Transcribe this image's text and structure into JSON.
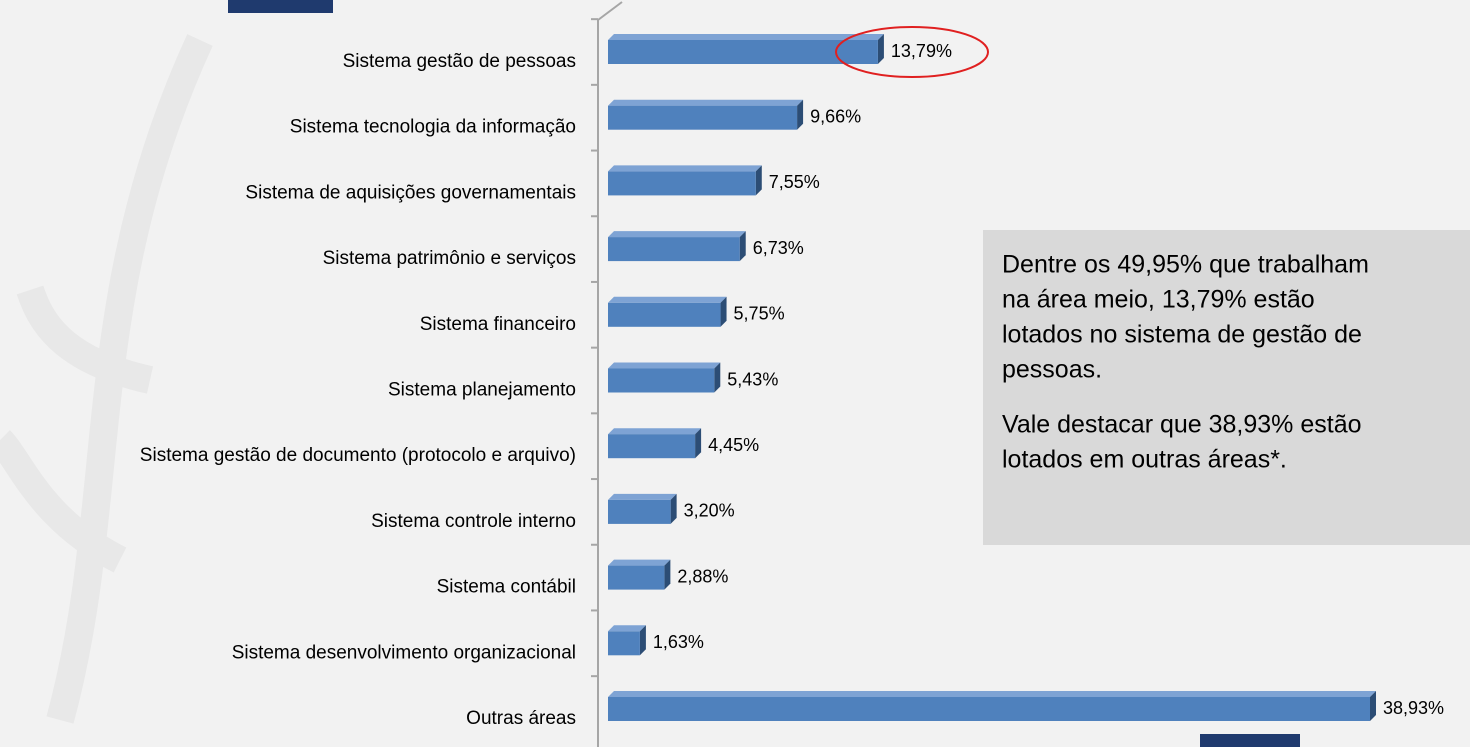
{
  "chart_data": {
    "type": "bar",
    "orientation": "horizontal",
    "categories": [
      "Sistema gestão de pessoas",
      "Sistema tecnologia da informação",
      "Sistema de aquisições governamentais",
      "Sistema patrimônio e serviços",
      "Sistema financeiro",
      "Sistema planejamento",
      "Sistema gestão de documento (protocolo e arquivo)",
      "Sistema controle interno",
      "Sistema contábil",
      "Sistema desenvolvimento organizacional",
      "Outras áreas"
    ],
    "values": [
      13.79,
      9.66,
      7.55,
      6.73,
      5.75,
      5.43,
      4.45,
      3.2,
      2.88,
      1.63,
      38.93
    ],
    "value_labels": [
      "13,79%",
      "9,66%",
      "7,55%",
      "6,73%",
      "5,75%",
      "5,43%",
      "4,45%",
      "3,20%",
      "2,88%",
      "1,63%",
      "38,93%"
    ],
    "color": "#4f81bd",
    "annotation": {
      "paragraphs": [
        [
          "Dentre os 49,95% que trabalham",
          "na área meio, 13,79% estão",
          "lotados no sistema de gestão de",
          "pessoas."
        ],
        [
          "Vale destacar que 38,93% estão",
          "lotados em outras áreas*."
        ]
      ]
    }
  }
}
